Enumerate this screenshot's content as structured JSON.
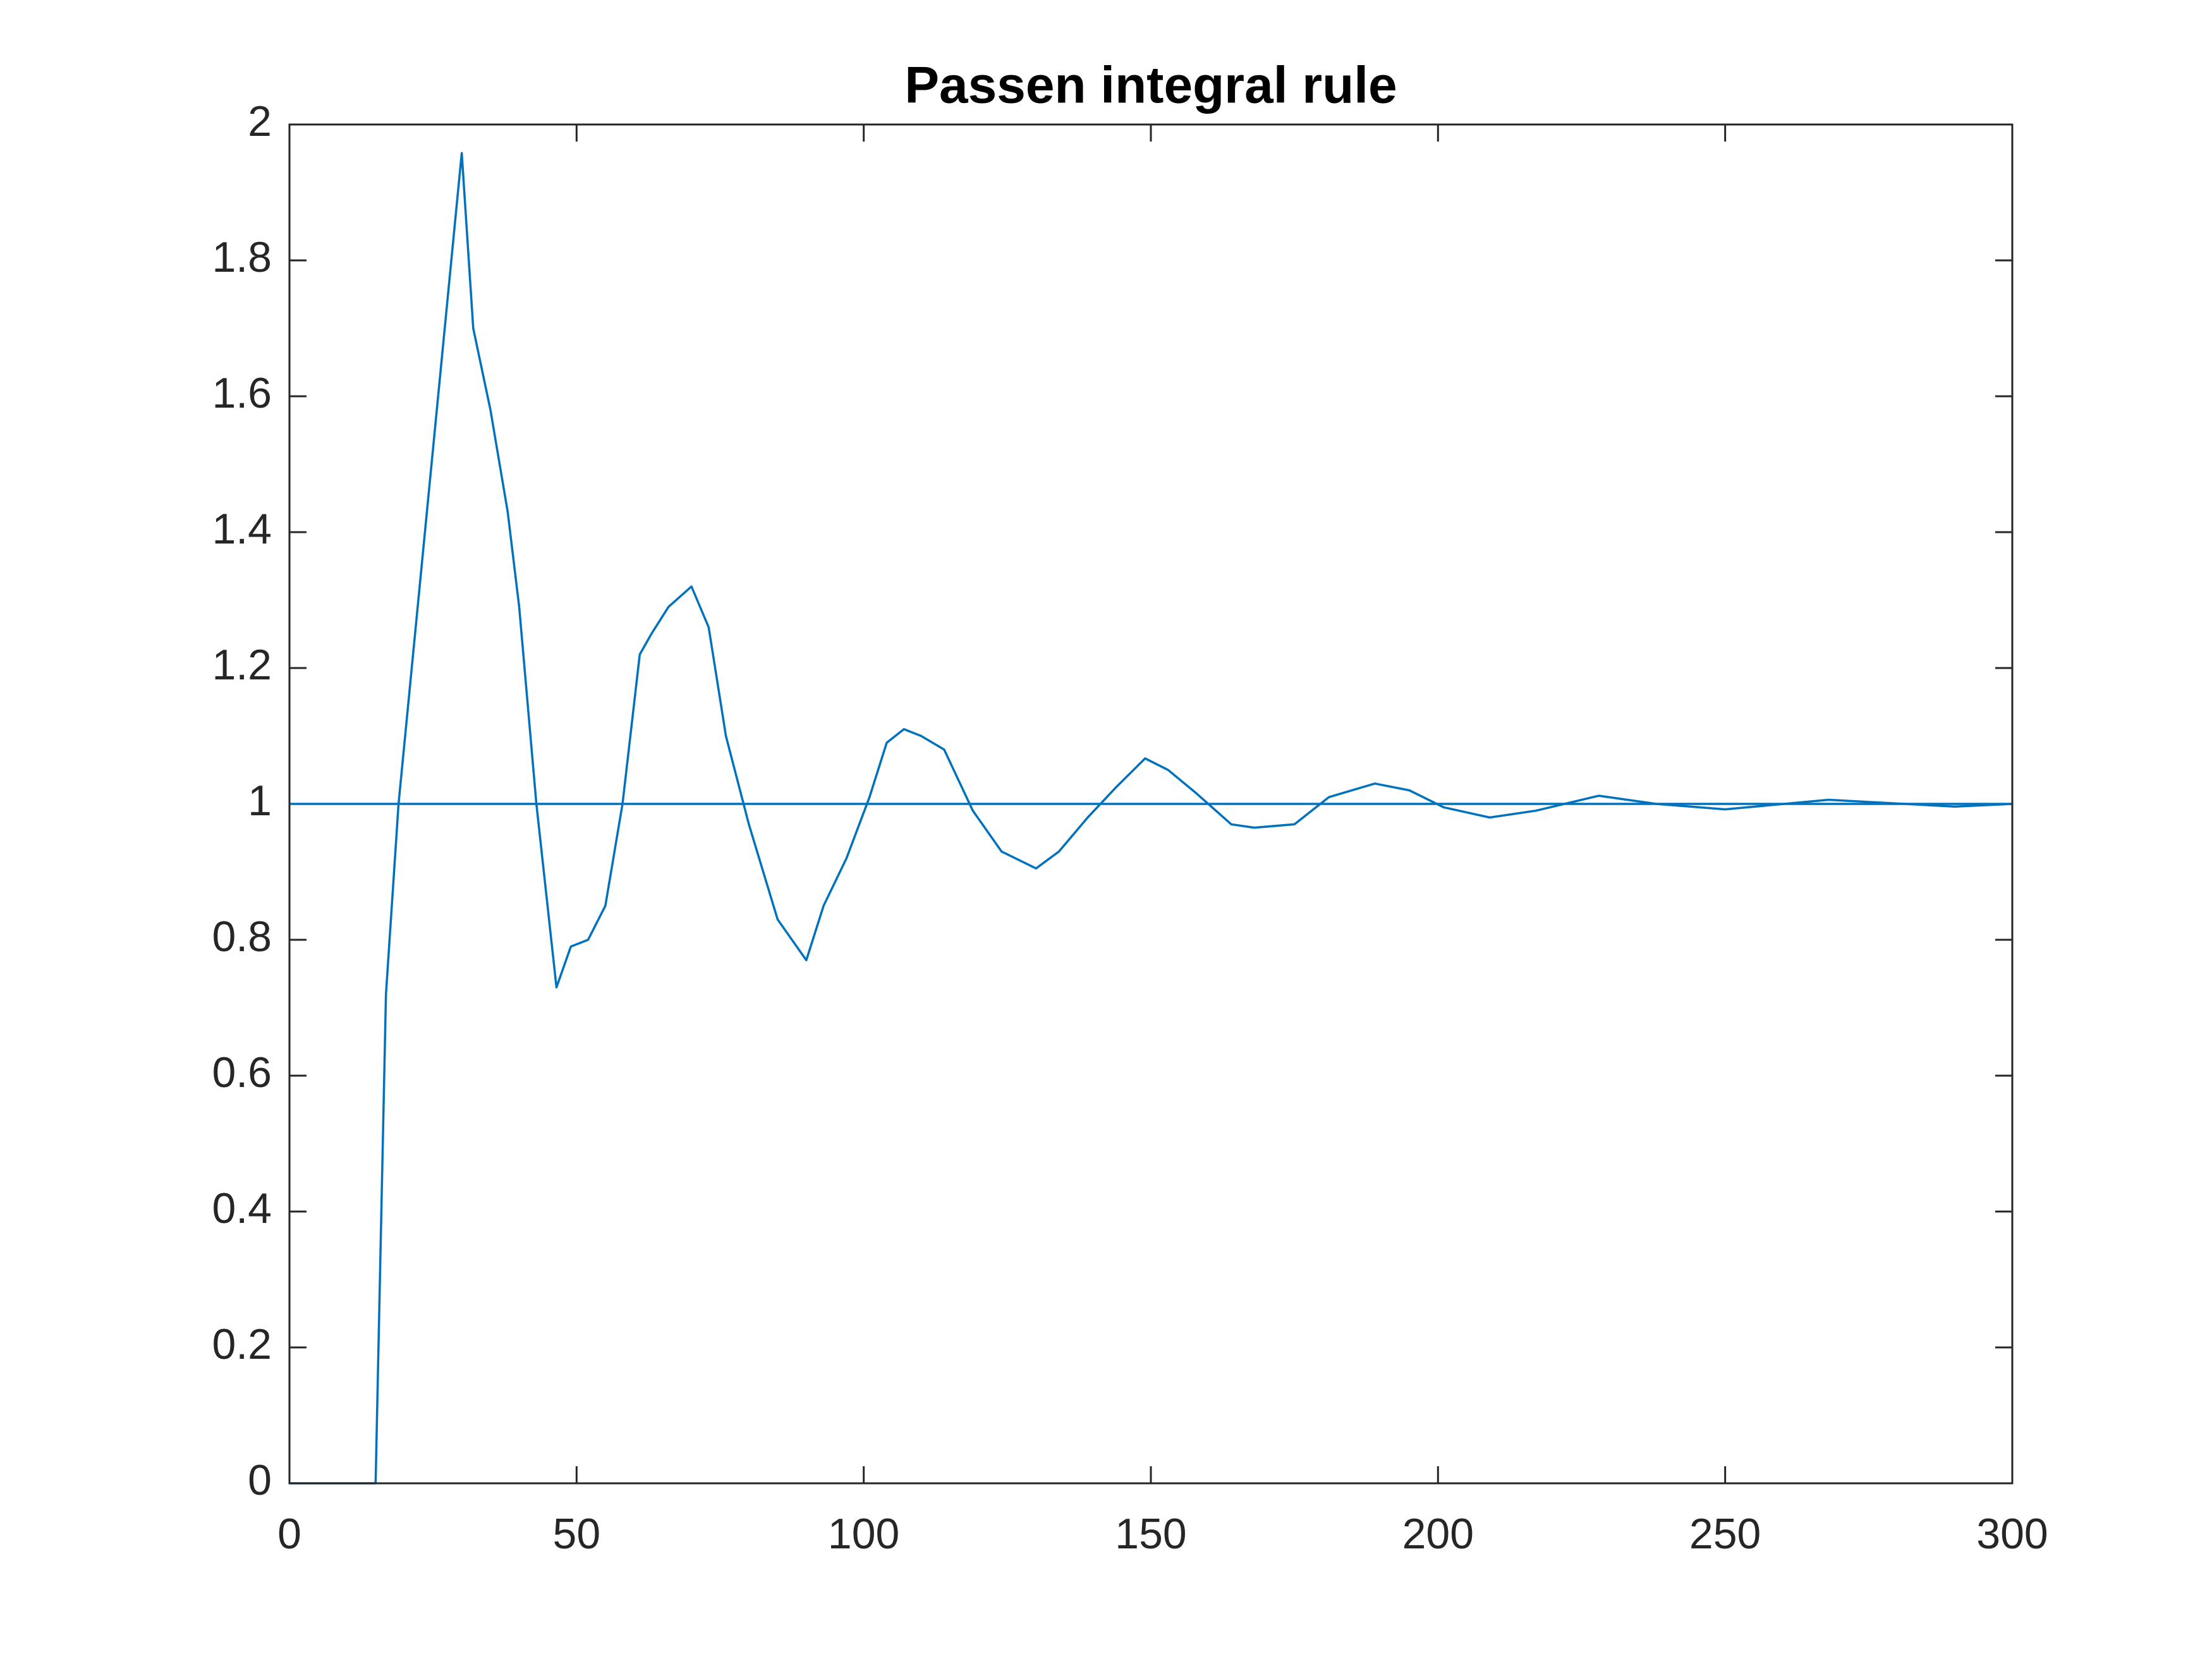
{
  "chart_data": {
    "type": "line",
    "title": "Passen integral rule",
    "series": [
      {
        "color": "#0072bd",
        "x": [
          0,
          15,
          16.8,
          19,
          30,
          32,
          35,
          38,
          40,
          43,
          46.5,
          49,
          52,
          55,
          58,
          61,
          63,
          66,
          70,
          73,
          76,
          80,
          85,
          90,
          93,
          97,
          101,
          104,
          107,
          110,
          114,
          119,
          124,
          130,
          134,
          139,
          144,
          149,
          153,
          158,
          164,
          168,
          175,
          181,
          189,
          195,
          201,
          209,
          217,
          228,
          238,
          250,
          268,
          290,
          300
        ],
        "values": [
          0,
          0,
          0.72,
          1.0,
          1.958,
          1.7,
          1.58,
          1.43,
          1.29,
          1.0,
          0.73,
          0.79,
          0.8,
          0.85,
          1.0,
          1.22,
          1.25,
          1.29,
          1.32,
          1.26,
          1.1,
          0.97,
          0.83,
          0.77,
          0.85,
          0.92,
          1.01,
          1.09,
          1.11,
          1.1,
          1.08,
          0.99,
          0.93,
          0.905,
          0.93,
          0.98,
          1.025,
          1.067,
          1.05,
          1.015,
          0.97,
          0.965,
          0.97,
          1.01,
          1.03,
          1.02,
          0.995,
          0.98,
          0.99,
          1.012,
          1.0,
          0.992,
          1.006,
          0.996,
          1.0
        ]
      },
      {
        "color": "#0072bd",
        "x": [
          0,
          300
        ],
        "values": [
          1,
          1
        ]
      }
    ],
    "xlim": [
      0,
      300
    ],
    "xticks": [
      0,
      50,
      100,
      150,
      200,
      250,
      300
    ],
    "ylim": [
      0,
      2
    ],
    "yticks": [
      0,
      0.2,
      0.4,
      0.6,
      0.8,
      1,
      1.2,
      1.4,
      1.6,
      1.8,
      2
    ]
  }
}
